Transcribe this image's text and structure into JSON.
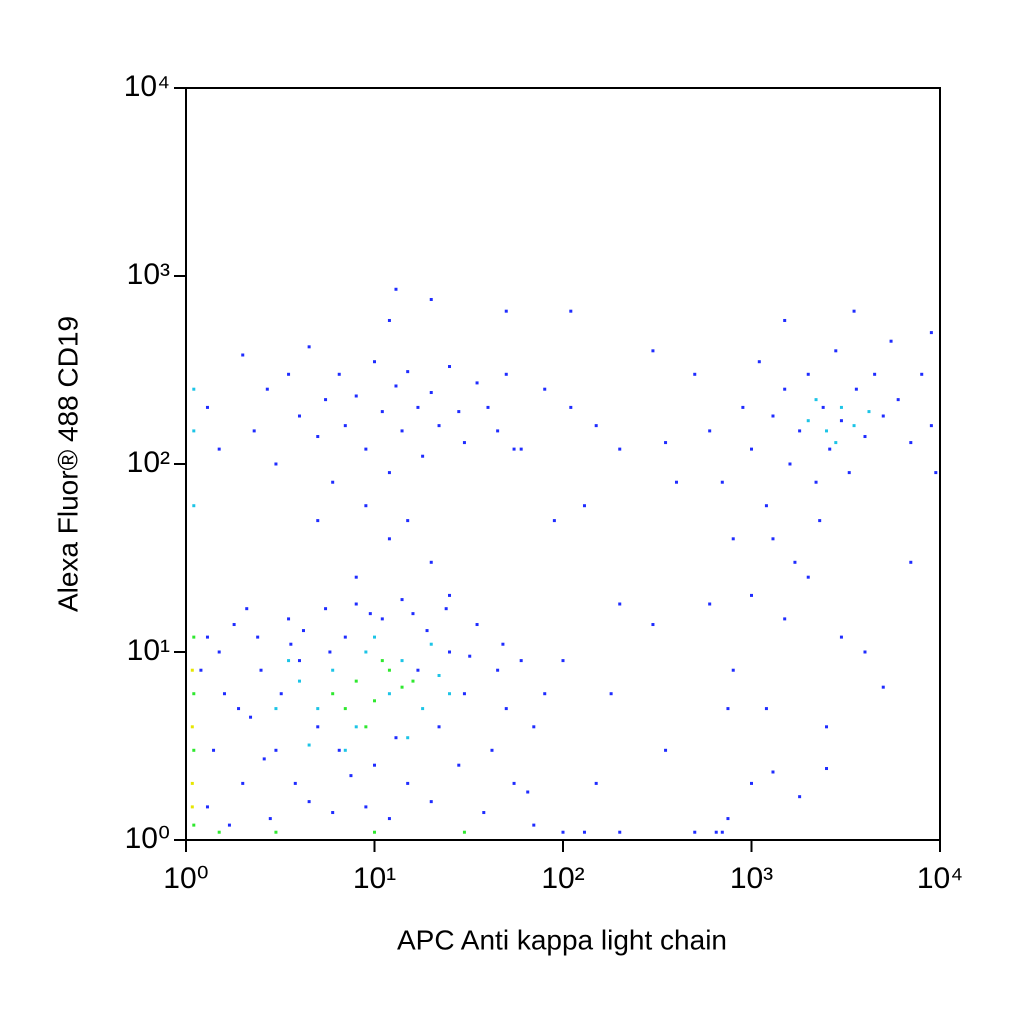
{
  "chart_data": {
    "type": "scatter",
    "xlabel": "APC Anti kappa light chain",
    "ylabel": "Alexa Fluor® 488 CD19",
    "log_x": true,
    "log_y": true,
    "xlim": [
      1,
      10000
    ],
    "ylim": [
      1,
      10000
    ],
    "xticks": [
      {
        "value": 1,
        "label": "10⁰"
      },
      {
        "value": 10,
        "label": "10¹"
      },
      {
        "value": 100,
        "label": "10²"
      },
      {
        "value": 1000,
        "label": "10³"
      },
      {
        "value": 10000,
        "label": "10⁴"
      }
    ],
    "yticks": [
      {
        "value": 1,
        "label": "10⁰"
      },
      {
        "value": 10,
        "label": "10¹"
      },
      {
        "value": 100,
        "label": "10²"
      },
      {
        "value": 1000,
        "label": "10³"
      },
      {
        "value": 10000,
        "label": "10⁴"
      }
    ],
    "series": [
      {
        "color": "#1f2cff",
        "x": [
          1.3,
          1.4,
          1.6,
          1.5,
          1.8,
          2,
          2.2,
          2.5,
          2.4,
          2.8,
          3,
          3.2,
          3.5,
          3.8,
          4,
          4.5,
          5,
          5.5,
          6,
          6.5,
          7,
          7.5,
          8,
          9,
          10,
          11,
          12,
          13,
          14,
          15,
          17,
          19,
          20,
          22,
          25,
          28,
          30,
          35,
          38,
          42,
          45,
          50,
          55,
          60,
          70,
          80,
          65,
          1.2,
          1.3,
          1.7,
          2.1,
          3.6,
          4.2,
          5.8,
          9.5,
          16,
          24,
          32,
          48,
          1.9,
          2.6,
          1.3,
          1.5,
          2,
          2.3,
          2.7,
          3,
          3.5,
          4,
          4.5,
          5,
          5.5,
          6,
          6.5,
          7,
          8,
          9,
          10,
          11,
          12,
          13,
          14,
          15,
          17,
          18,
          20,
          22,
          25,
          28,
          30,
          35,
          40,
          45,
          50,
          60,
          9,
          12,
          15,
          20,
          5,
          8,
          25,
          13,
          20,
          12,
          50,
          55,
          80,
          110,
          150,
          200,
          300,
          350,
          400,
          90,
          130,
          200,
          300,
          180,
          100,
          150,
          70,
          100,
          130,
          200,
          350,
          500,
          650,
          750,
          1000,
          1300,
          700,
          110,
          500,
          600,
          700,
          800,
          900,
          1000,
          1100,
          1200,
          1300,
          1500,
          1600,
          1700,
          1800,
          2000,
          2200,
          2400,
          2600,
          2800,
          3000,
          3300,
          3600,
          4000,
          4500,
          5000,
          5500,
          6000,
          7000,
          8000,
          9000,
          9500,
          1000,
          1500,
          2000,
          3000,
          4000,
          800,
          1200,
          2500,
          5000,
          600,
          750,
          2500,
          1800,
          3500,
          1500,
          9000,
          7000,
          1300,
          2300
        ],
        "values": [
          1.5,
          3,
          6,
          10,
          14,
          2,
          4.5,
          8,
          12,
          1.3,
          3,
          6,
          15,
          2,
          9,
          1.6,
          4,
          17,
          1.4,
          3,
          12,
          2.2,
          18,
          1.5,
          2.5,
          15,
          1.3,
          3.5,
          19,
          2,
          8,
          13,
          1.6,
          4,
          10,
          2.5,
          6,
          14,
          1.4,
          3,
          8,
          5,
          2,
          9,
          4,
          6,
          1.8,
          8,
          12,
          1.2,
          17,
          11,
          13,
          10,
          16,
          16,
          17,
          9.5,
          11,
          5,
          2.7,
          200,
          120,
          380,
          150,
          250,
          100,
          300,
          180,
          420,
          140,
          220,
          80,
          300,
          160,
          230,
          120,
          350,
          190,
          90,
          260,
          150,
          310,
          200,
          110,
          240,
          160,
          330,
          190,
          130,
          270,
          200,
          150,
          300,
          120,
          60,
          40,
          50,
          30,
          50,
          25,
          20,
          850,
          750,
          580,
          650,
          120,
          250,
          200,
          160,
          120,
          400,
          130,
          80,
          50,
          60,
          18,
          14,
          6,
          9,
          2,
          1.2,
          1.1,
          1.1,
          1.1,
          3,
          1.1,
          1.1,
          1.3,
          2,
          2.3,
          1.1,
          650,
          300,
          150,
          80,
          40,
          200,
          120,
          350,
          60,
          180,
          250,
          100,
          30,
          150,
          300,
          80,
          200,
          120,
          400,
          170,
          90,
          250,
          140,
          300,
          180,
          450,
          220,
          130,
          300,
          160,
          90,
          20,
          15,
          25,
          12,
          10,
          8,
          5,
          4,
          6.5,
          18,
          5,
          2.4,
          1.7,
          650,
          580,
          500,
          30,
          40,
          50
        ]
      },
      {
        "color": "#1cc4e6",
        "x": [
          3,
          4,
          5,
          6,
          8,
          9,
          12,
          14,
          18,
          20,
          25,
          7,
          15,
          10,
          4.5,
          22,
          3.5,
          2000,
          2500,
          3000,
          3500,
          2800,
          4200,
          2200,
          1.1,
          1.1,
          1.1
        ],
        "values": [
          5,
          7,
          5,
          8,
          4,
          10,
          6,
          9,
          5,
          11,
          6,
          3,
          3.5,
          12,
          3.2,
          7.5,
          9,
          170,
          150,
          200,
          160,
          130,
          190,
          220,
          150,
          250,
          60
        ]
      },
      {
        "color": "#2ee82e",
        "x": [
          6,
          8,
          10,
          12,
          14,
          9,
          11,
          16,
          7,
          1.1,
          1.1,
          1.1,
          1.1,
          3,
          10,
          30,
          1.5
        ],
        "values": [
          6,
          7,
          5.5,
          8,
          6.5,
          4,
          9,
          7,
          5,
          12,
          6,
          3,
          1.2,
          1.1,
          1.1,
          1.1,
          1.1
        ]
      },
      {
        "color": "#e6e600",
        "x": [
          1.08,
          1.08,
          1.08,
          1.08
        ],
        "values": [
          2,
          4,
          8,
          1.5
        ]
      }
    ]
  }
}
